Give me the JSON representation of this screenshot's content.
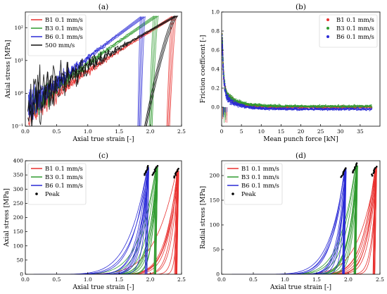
{
  "chart_data": [
    {
      "id": "a",
      "panel_label": "(a)",
      "type": "line",
      "xlabel": "Axial true strain [-]",
      "ylabel": "Axial stress [MPa]",
      "xlim": [
        0,
        2.5
      ],
      "ylim": [
        0.1,
        300
      ],
      "yscale": "log",
      "x_ticks": [
        0,
        0.5,
        1,
        1.5,
        2,
        2.5
      ],
      "x_tick_labels": [
        "0.0",
        "0.5",
        "1.0",
        "1.5",
        "2.0",
        "2.5"
      ],
      "y_ticks": [
        0.1,
        1,
        10,
        100
      ],
      "y_tick_labels": [
        "10⁻¹",
        "10⁰",
        "10¹",
        "10²"
      ],
      "legend_position": "top-left",
      "series": [
        {
          "name": "B1 0.1 mm/s",
          "color": "#e8312f",
          "x_start": 0.05,
          "y_start": 0.25,
          "x_peak": 2.38,
          "y_peak": 220,
          "x_end": 2.28,
          "noise": 0.5
        },
        {
          "name": "B3 0.1 mm/s",
          "color": "#2f9a2f",
          "x_start": 0.05,
          "y_start": 0.32,
          "x_peak": 2.09,
          "y_peak": 225,
          "x_end": 2.0,
          "noise": 0.5
        },
        {
          "name": "B6 0.1 mm/s",
          "color": "#2b2bd6",
          "x_start": 0.05,
          "y_start": 0.38,
          "x_peak": 1.88,
          "y_peak": 215,
          "x_end": 1.82,
          "noise": 0.5
        },
        {
          "name": "500 mm/s",
          "color": "#111111",
          "x_start": 0.04,
          "y_start": 0.45,
          "x_peak": 2.43,
          "y_peak": 230,
          "x_end": 1.9,
          "noise": 0.9
        }
      ]
    },
    {
      "id": "b",
      "panel_label": "(b)",
      "type": "line",
      "xlabel": "Mean punch force [kN]",
      "ylabel": "Friction coefficent [-]",
      "xlim": [
        0,
        40
      ],
      "ylim": [
        -0.2,
        1.0
      ],
      "x_ticks": [
        0,
        5,
        10,
        15,
        20,
        25,
        30,
        35
      ],
      "x_tick_labels": [
        "0",
        "5",
        "10",
        "15",
        "20",
        "25",
        "30",
        "35"
      ],
      "y_ticks": [
        -0.2,
        0,
        0.2,
        0.4,
        0.6,
        0.8,
        1.0
      ],
      "y_tick_labels": [
        "",
        "0.0",
        "0.2",
        "0.4",
        "0.6",
        "0.8",
        "1.0"
      ],
      "legend_position": "top-right",
      "series": [
        {
          "name": "B1 0.1 mm/s",
          "color": "#e8312f",
          "x_max": 38,
          "plateau": 0.0
        },
        {
          "name": "B3 0.1 mm/s",
          "color": "#2f9a2f",
          "x_max": 38,
          "plateau": 0.01
        },
        {
          "name": "B6 0.1 mm/s",
          "color": "#2b2bd6",
          "x_max": 38,
          "plateau": -0.02
        }
      ]
    },
    {
      "id": "c",
      "panel_label": "(c)",
      "type": "line",
      "xlabel": "Axial true strain [-]",
      "ylabel": "Axial stress [MPa]",
      "xlim": [
        0,
        2.5
      ],
      "ylim": [
        0,
        400
      ],
      "x_ticks": [
        0,
        0.5,
        1,
        1.5,
        2,
        2.5
      ],
      "x_tick_labels": [
        "0.0",
        "0.5",
        "1.0",
        "1.5",
        "2.0",
        "2.5"
      ],
      "y_ticks": [
        0,
        50,
        100,
        150,
        200,
        250,
        300,
        350,
        400
      ],
      "y_tick_labels": [
        "0",
        "50",
        "100",
        "150",
        "200",
        "250",
        "300",
        "350",
        "400"
      ],
      "legend_position": "top-left",
      "series": [
        {
          "name": "B1 0.1 mm/s",
          "color": "#e8312f",
          "x_min": 2.22,
          "x_peak": 2.46,
          "y_peak": 372,
          "spread": 0.5
        },
        {
          "name": "B3 0.1 mm/s",
          "color": "#2f9a2f",
          "x_min": 1.9,
          "x_peak": 2.12,
          "y_peak": 382,
          "spread": 0.5
        },
        {
          "name": "B6 0.1 mm/s",
          "color": "#2b2bd6",
          "x_min": 1.68,
          "x_peak": 1.98,
          "y_peak": 382,
          "spread": 1.0
        },
        {
          "name": "Peak",
          "marker": "dot",
          "color": "#000000"
        }
      ]
    },
    {
      "id": "d",
      "panel_label": "(d)",
      "type": "line",
      "xlabel": "Axial true strain [-]",
      "ylabel": "Radial stress [MPa]",
      "xlim": [
        0,
        2.5
      ],
      "ylim": [
        0,
        230
      ],
      "x_ticks": [
        0,
        0.5,
        1,
        1.5,
        2,
        2.5
      ],
      "x_tick_labels": [
        "0.0",
        "0.5",
        "1.0",
        "1.5",
        "2.0",
        "2.5"
      ],
      "y_ticks": [
        0,
        50,
        100,
        150,
        200
      ],
      "y_tick_labels": [
        "0",
        "50",
        "100",
        "150",
        "200"
      ],
      "legend_position": "top-left",
      "series": [
        {
          "name": "B1 0.1 mm/s",
          "color": "#e8312f",
          "x_min": 2.25,
          "x_peak": 2.45,
          "y_peak": 218,
          "spread": 0.5
        },
        {
          "name": "B3 0.1 mm/s",
          "color": "#2f9a2f",
          "x_min": 1.95,
          "x_peak": 2.15,
          "y_peak": 225,
          "spread": 0.5
        },
        {
          "name": "B6 0.1 mm/s",
          "color": "#2b2bd6",
          "x_min": 1.7,
          "x_peak": 1.97,
          "y_peak": 215,
          "spread": 1.0
        },
        {
          "name": "Peak",
          "marker": "dot",
          "color": "#000000"
        }
      ]
    }
  ]
}
